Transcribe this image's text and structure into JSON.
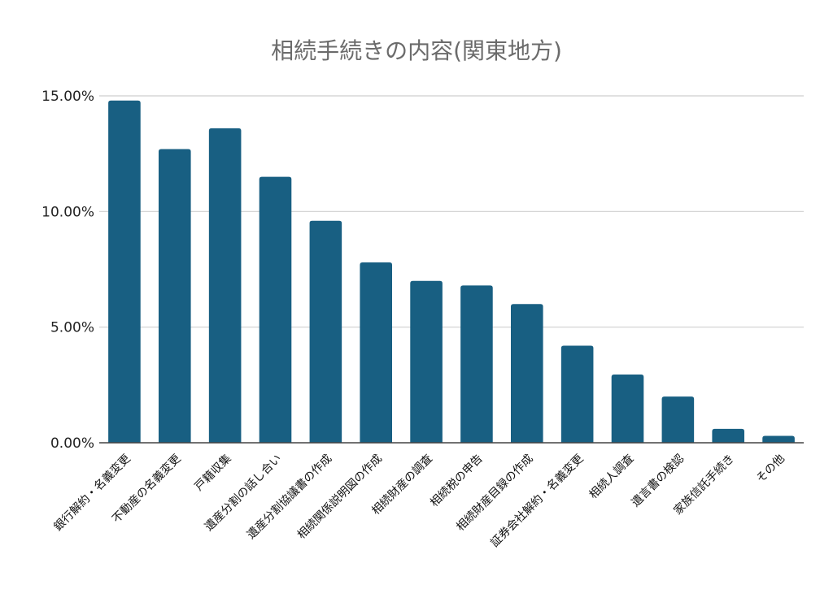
{
  "chart_data": {
    "type": "bar",
    "title": "相続手続きの内容(関東地方)",
    "xlabel": "",
    "ylabel": "",
    "categories": [
      "銀行解約・名義変更",
      "不動産の名義変更",
      "戸籍収集",
      "遺産分割の話し合い",
      "遺産分割協議書の作成",
      "相続関係説明図の作成",
      "相続財産の調査",
      "相続税の申告",
      "相続財産目録の作成",
      "証券会社解約・名義変更",
      "相続人調査",
      "遺言書の検認",
      "家族信託手続き",
      "その他"
    ],
    "values": [
      14.8,
      12.7,
      13.6,
      11.5,
      9.6,
      7.8,
      7.0,
      6.8,
      6.0,
      4.2,
      2.95,
      2.0,
      0.6,
      0.3
    ],
    "ylim": [
      0,
      15
    ],
    "yticks": [
      0,
      5,
      10,
      15
    ],
    "ytick_labels": [
      "0.00%",
      "5.00%",
      "10.00%",
      "15.00%"
    ],
    "grid": true,
    "legend": "none",
    "bar_color": "#185f82"
  }
}
